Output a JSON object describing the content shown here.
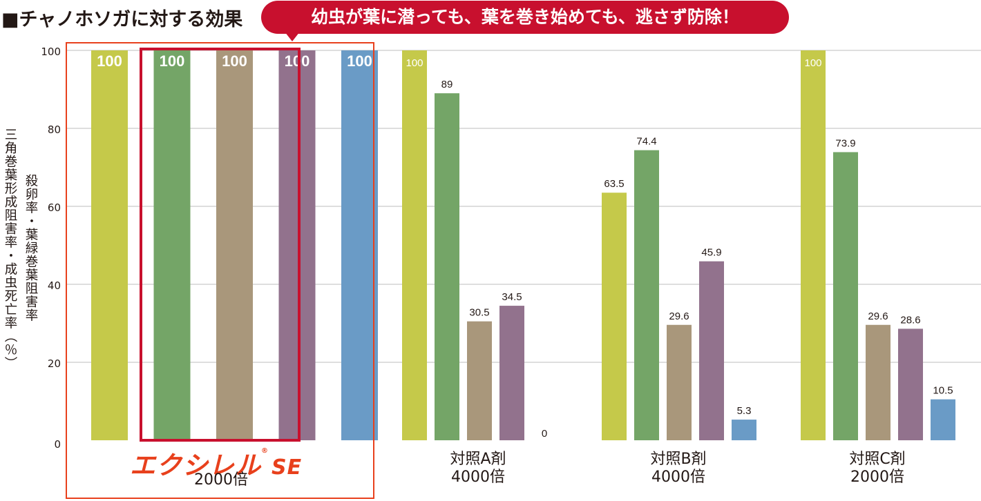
{
  "title": "■チャノホソガに対する効果",
  "badge": "幼虫が葉に潜っても、葉を巻き始めても、逃さず防除！",
  "y_label_outer": "三角巻葉形成阻害率・成虫死亡率（％）",
  "y_label_inner": "殺卵率・葉緑巻葉阻害率",
  "colors": {
    "series": [
      "#c5c94a",
      "#74a567",
      "#a9977b",
      "#92728d",
      "#6a9bc6"
    ],
    "grid": "#d4d4d4",
    "highlight_box": "#c8102e",
    "group_box": "#e8401c"
  },
  "logo": {
    "brand": "エクシレル",
    "mark": "®",
    "suffix": "SE"
  },
  "chart_data": {
    "type": "bar",
    "ylim": [
      0,
      100
    ],
    "yticks": [
      0,
      20,
      40,
      60,
      80,
      100
    ],
    "grid": true,
    "categories": [
      {
        "label": "2000倍",
        "logo": true
      },
      {
        "label": "対照A剤",
        "sublabel": "4000倍"
      },
      {
        "label": "対照B剤",
        "sublabel": "4000倍"
      },
      {
        "label": "対照C剤",
        "sublabel": "2000倍"
      }
    ],
    "series": [
      {
        "values": [
          100,
          100,
          63.5,
          100
        ]
      },
      {
        "values": [
          100,
          89,
          74.4,
          73.9
        ]
      },
      {
        "values": [
          100,
          30.5,
          29.6,
          29.6
        ]
      },
      {
        "values": [
          100,
          34.5,
          45.9,
          28.6
        ]
      },
      {
        "values": [
          100,
          0,
          5.3,
          10.5
        ]
      }
    ],
    "value_labels": [
      [
        "100",
        "100",
        "100",
        "100",
        "100"
      ],
      [
        "100",
        "89",
        "30.5",
        "34.5",
        "0"
      ],
      [
        "63.5",
        "74.4",
        "29.6",
        "45.9",
        "5.3"
      ],
      [
        "100",
        "73.9",
        "29.6",
        "28.6",
        "10.5"
      ]
    ]
  }
}
